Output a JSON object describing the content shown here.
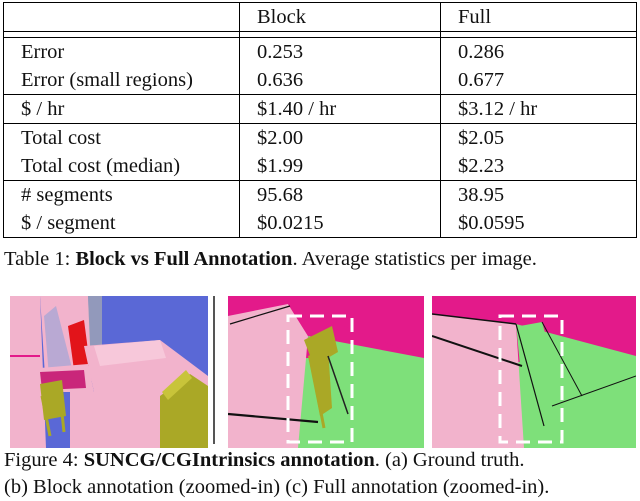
{
  "table": {
    "header": {
      "col1": "",
      "col2": "Block",
      "col3": "Full"
    },
    "groups": [
      [
        {
          "label": "Error",
          "block": "0.253",
          "full": "0.286"
        },
        {
          "label": "Error (small regions)",
          "block": "0.636",
          "full": "0.677"
        }
      ],
      [
        {
          "label": "$ / hr",
          "block": "$1.40 / hr",
          "full": "$3.12 / hr"
        }
      ],
      [
        {
          "label": "Total cost",
          "block": "$2.00",
          "full": "$2.05"
        },
        {
          "label": "Total cost (median)",
          "block": "$1.99",
          "full": "$2.23"
        }
      ],
      [
        {
          "label": "# segments",
          "block": "95.68",
          "full": "38.95"
        },
        {
          "label": "$ / segment",
          "block": "$0.0215",
          "full": "$0.0595"
        }
      ]
    ]
  },
  "caption1": {
    "label": "Table 1:",
    "title": "Block vs Full Annotation",
    "rest": ". Average statistics per image."
  },
  "figure": {
    "colors": {
      "blue": "#5a68d6",
      "pink": "#f2b3cc",
      "magenta": "#e31a8a",
      "green": "#7ee07a",
      "olive": "#aaa826",
      "red": "#e2141a",
      "crimson": "#c9267a",
      "white": "#ffffff"
    }
  },
  "caption2": {
    "label": "Figure 4:",
    "title": "SUNCG/CGIntrinsics annotation",
    "line1_rest": ". (a) Ground truth.",
    "line2": "(b) Block annotation (zoomed-in) (c) Full annotation (zoomed-in)."
  }
}
